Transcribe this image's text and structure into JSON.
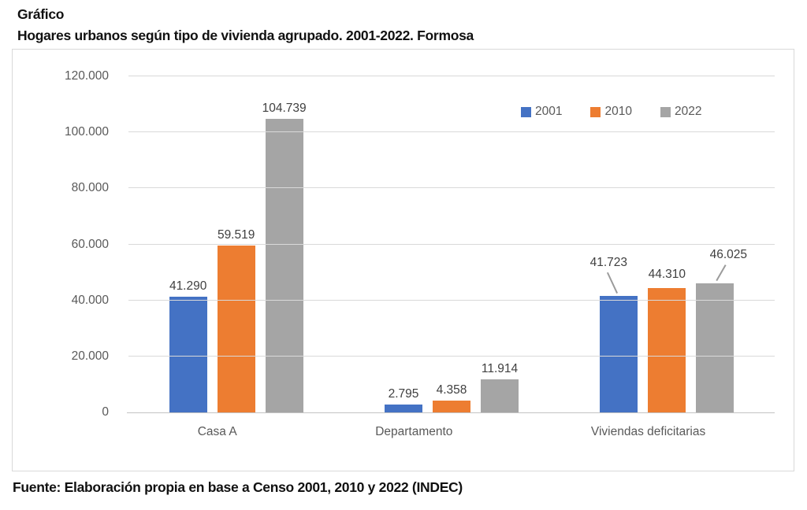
{
  "header": {
    "kicker": "Gráfico",
    "title": "Hogares urbanos según tipo de vivienda agrupado. 2001-2022. Formosa"
  },
  "footer": {
    "source": "Fuente: Elaboración propia en base a Censo 2001, 2010 y 2022 (INDEC)"
  },
  "chart_data": {
    "type": "bar",
    "title": "Hogares urbanos según tipo de vivienda agrupado. 2001-2022. Formosa",
    "categories": [
      "Casa A",
      "Departamento",
      "Viviendas deficitarias"
    ],
    "series": [
      {
        "name": "2001",
        "color": "#4472C4",
        "values": [
          41290,
          2795,
          41723
        ]
      },
      {
        "name": "2010",
        "color": "#ED7D31",
        "values": [
          59519,
          4358,
          44310
        ]
      },
      {
        "name": "2022",
        "color": "#A5A5A5",
        "values": [
          104739,
          11914,
          46025
        ]
      }
    ],
    "data_labels": [
      [
        "41.290",
        "2.795",
        "41.723"
      ],
      [
        "59.519",
        "4.358",
        "44.310"
      ],
      [
        "104.739",
        "11.914",
        "46.025"
      ]
    ],
    "ylim": [
      0,
      120000
    ],
    "ytick_step": 20000,
    "ytick_labels": [
      "0",
      "20.000",
      "40.000",
      "60.000",
      "80.000",
      "100.000",
      "120.000"
    ],
    "grid": true,
    "legend_position": "top-right",
    "colors": {
      "gridline": "#d9d9d9",
      "axis_text": "#595959",
      "data_label_text": "#404040"
    }
  }
}
